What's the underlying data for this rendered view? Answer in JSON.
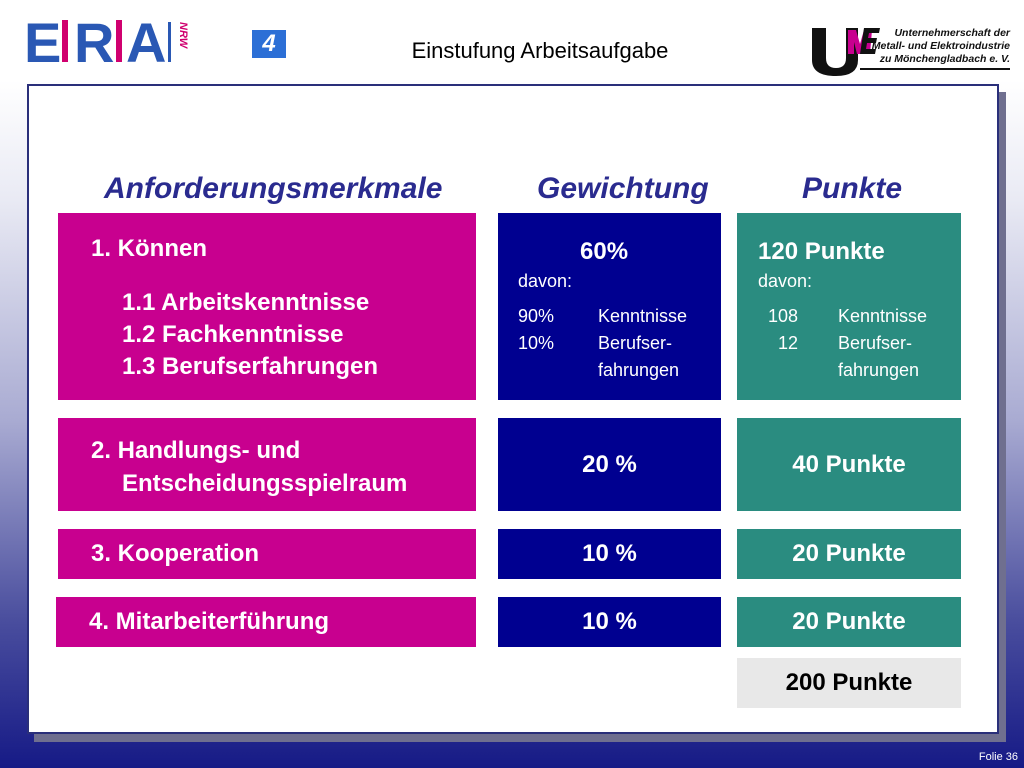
{
  "header": {
    "logo_left": {
      "letters": [
        "E",
        "R",
        "A"
      ],
      "suffix": "NRW"
    },
    "slide_badge": "4",
    "title": "Einstufung Arbeitsaufgabe",
    "logo_right": {
      "mark": "UME",
      "lines": [
        "Unternehmerschaft der",
        "Metall- und Elektroindustrie",
        "zu Mönchengladbach e. V."
      ]
    }
  },
  "columns": {
    "merkmale": "Anforderungsmerkmale",
    "gewichtung": "Gewichtung",
    "punkte": "Punkte"
  },
  "rows": [
    {
      "merkmal": "1. Können",
      "subitems": [
        "1.1 Arbeitskenntnisse",
        "1.2 Fachkenntnisse",
        "1.3 Berufserfahrungen"
      ],
      "gewichtung": "60%",
      "gewichtung_davon": "davon:",
      "gewichtung_breakdown": [
        {
          "value": "90%",
          "label": "Kenntnisse"
        },
        {
          "value": "10%",
          "label": "Berufser-"
        },
        {
          "value": "",
          "label": "fahrungen"
        }
      ],
      "punkte": "120 Punkte",
      "punkte_davon": "davon:",
      "punkte_breakdown": [
        {
          "value": "108",
          "label": "Kenntnisse"
        },
        {
          "value": "12",
          "label": "Berufser-"
        },
        {
          "value": "",
          "label": "fahrungen"
        }
      ]
    },
    {
      "merkmal_line1": "2. Handlungs- und",
      "merkmal_line2": "Entscheidungsspielraum",
      "gewichtung": "20 %",
      "punkte": "40 Punkte"
    },
    {
      "merkmal": "3. Kooperation",
      "gewichtung": "10 %",
      "punkte": "20 Punkte"
    },
    {
      "merkmal": "4. Mitarbeiterführung",
      "gewichtung": "10 %",
      "punkte": "20 Punkte"
    }
  ],
  "total": "200 Punkte",
  "footer": "Folie 36",
  "colors": {
    "pink": "#c8008f",
    "blue": "#000090",
    "teal": "#2a8c80",
    "heading": "#2a2b8f"
  }
}
